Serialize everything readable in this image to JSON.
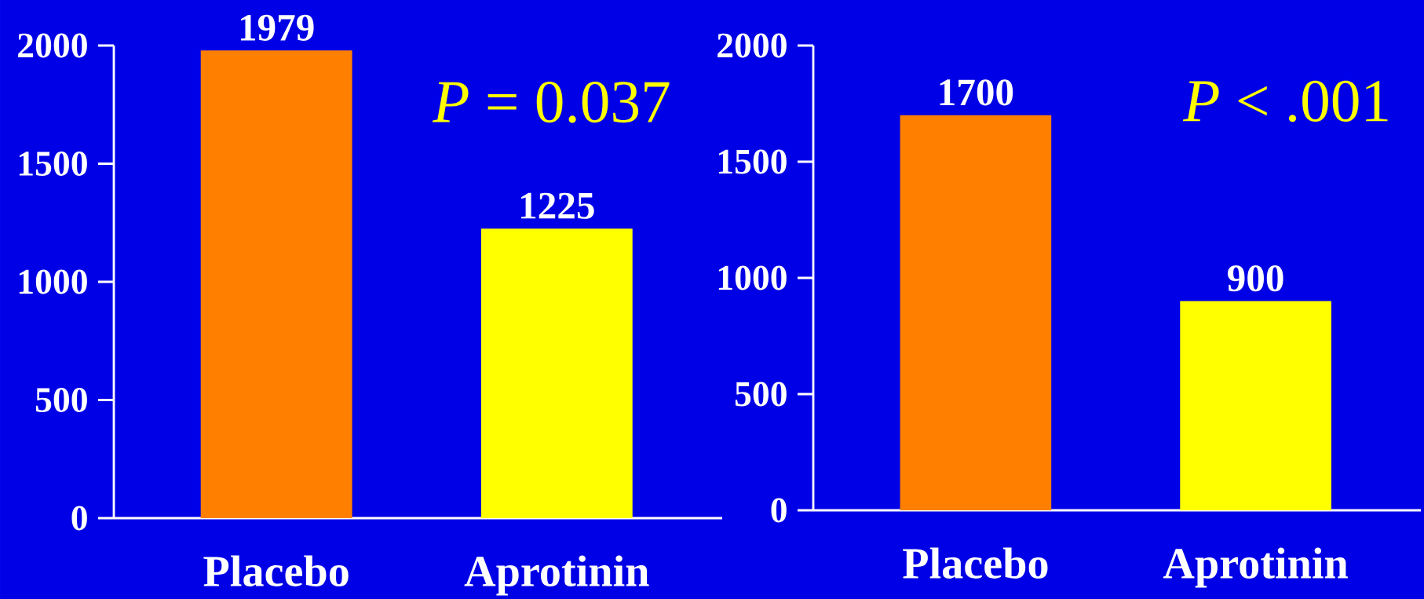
{
  "chart_data": [
    {
      "type": "bar",
      "categories": [
        "Placebo",
        "Aprotinin"
      ],
      "values": [
        1979,
        1225
      ],
      "colors": [
        "#ff8000",
        "#ffff00"
      ],
      "ylim": [
        0,
        2000
      ],
      "yticks": [
        0,
        500,
        1000,
        1500,
        2000
      ],
      "data_labels": true,
      "annotations": [
        "*P* = 0.037"
      ]
    },
    {
      "type": "bar",
      "categories": [
        "Placebo",
        "Aprotinin"
      ],
      "values": [
        1700,
        900
      ],
      "colors": [
        "#ff8000",
        "#ffff00"
      ],
      "ylim": [
        0,
        2000
      ],
      "yticks": [
        0,
        500,
        1000,
        1500,
        2000
      ],
      "data_labels": true,
      "annotations": [
        "*P* < .001"
      ]
    }
  ]
}
